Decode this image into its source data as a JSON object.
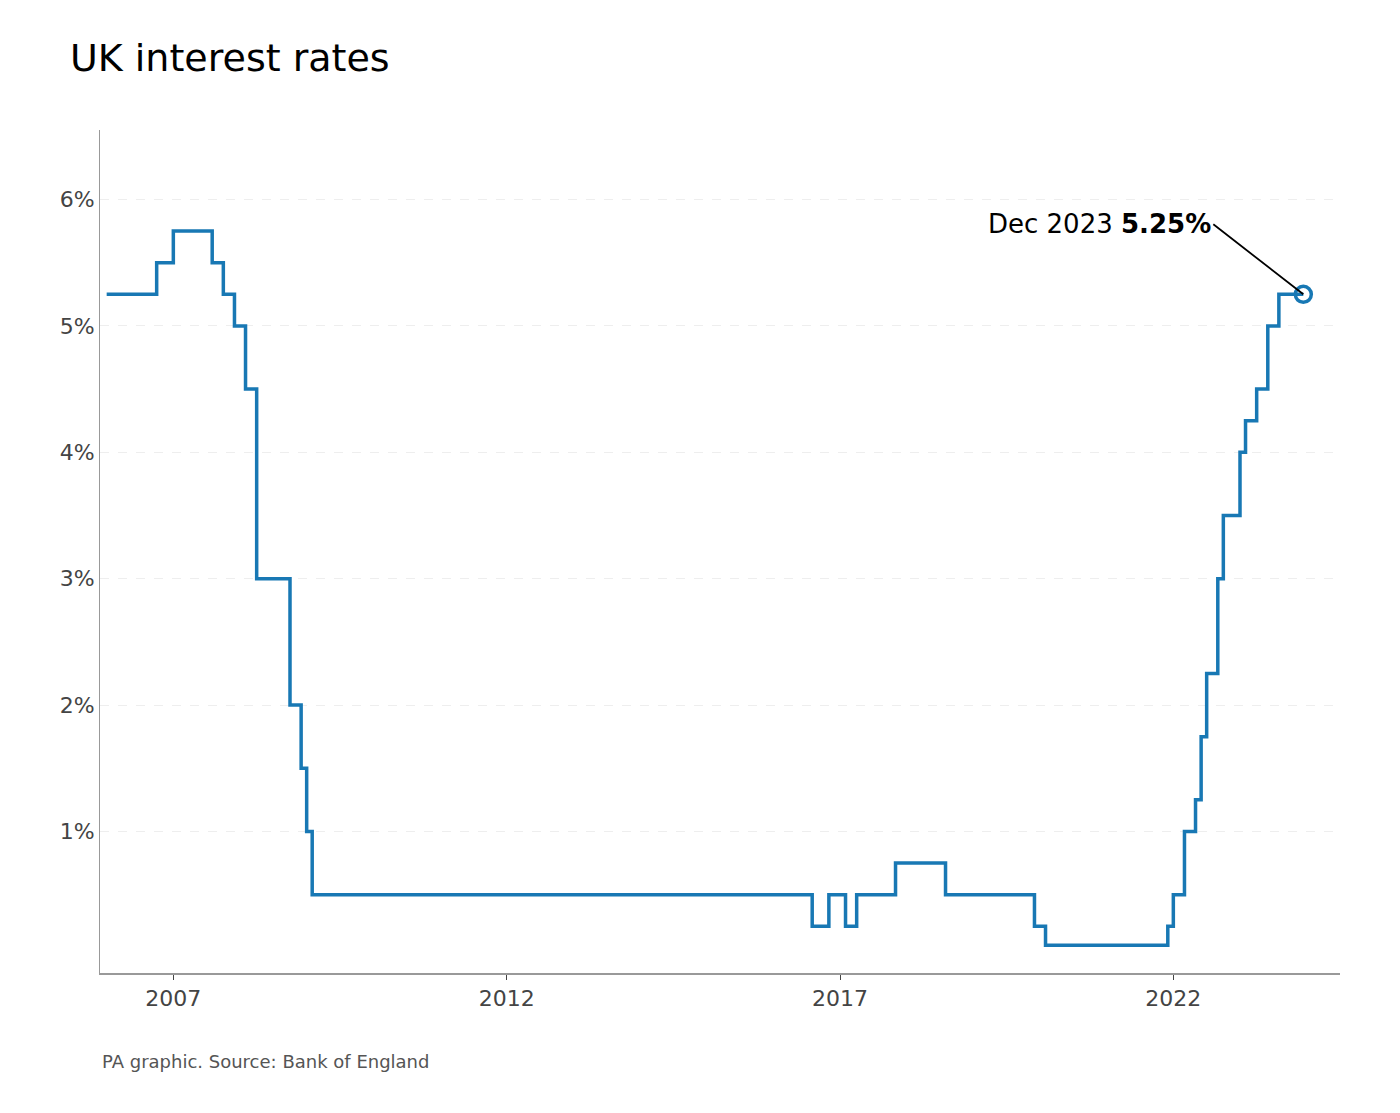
{
  "chart_data": {
    "type": "line",
    "title": "UK interest rates",
    "source": "PA graphic. Source: Bank of England",
    "annotations": [
      "Dec 2023 5.25%"
    ],
    "color": "#1878b4",
    "x": [
      2006.0,
      2006.75,
      2006.75,
      2007.0,
      2007.0,
      2007.583,
      2007.583,
      2007.75,
      2007.75,
      2007.917,
      2007.917,
      2008.083,
      2008.083,
      2008.25,
      2008.25,
      2008.75,
      2008.75,
      2008.917,
      2008.917,
      2009.0,
      2009.0,
      2009.083,
      2009.083,
      2016.583,
      2016.583,
      2016.833,
      2016.833,
      2017.083,
      2017.083,
      2017.25,
      2017.25,
      2017.833,
      2017.833,
      2018.583,
      2018.583,
      2019.917,
      2019.917,
      2020.083,
      2020.083,
      2021.917,
      2021.917,
      2022.0,
      2022.0,
      2022.167,
      2022.167,
      2022.333,
      2022.333,
      2022.417,
      2022.417,
      2022.5,
      2022.5,
      2022.667,
      2022.667,
      2022.75,
      2022.75,
      2022.917,
      2022.917,
      2023.0,
      2023.0,
      2023.083,
      2023.083,
      2023.25,
      2023.25,
      2023.417,
      2023.417,
      2023.583,
      2023.583,
      2023.95
    ],
    "values": [
      5.25,
      5.25,
      5.5,
      5.5,
      5.75,
      5.75,
      5.5,
      5.5,
      5.25,
      5.25,
      5.0,
      5.0,
      4.5,
      4.5,
      3.0,
      3.0,
      2.0,
      2.0,
      1.5,
      1.5,
      1.0,
      1.0,
      0.5,
      0.5,
      0.25,
      0.25,
      0.5,
      0.5,
      0.25,
      0.25,
      0.5,
      0.5,
      0.75,
      0.75,
      0.5,
      0.5,
      0.25,
      0.25,
      0.1,
      0.1,
      0.25,
      0.25,
      0.5,
      0.5,
      1.0,
      1.0,
      1.25,
      1.25,
      1.75,
      1.75,
      2.25,
      2.25,
      3.0,
      3.0,
      3.5,
      3.5,
      3.5,
      3.5,
      4.0,
      4.0,
      4.25,
      4.25,
      4.5,
      4.5,
      5.0,
      5.0,
      5.25,
      5.25
    ],
    "xlim": [
      2005.9,
      2024.5
    ],
    "xticks": [
      2007,
      2012,
      2017,
      2022
    ],
    "ylim": [
      -0.12,
      6.55
    ],
    "yticks": [
      {
        "value": 1,
        "label": "1%"
      },
      {
        "value": 2,
        "label": "2%"
      },
      {
        "value": 3,
        "label": "3%"
      },
      {
        "value": 4,
        "label": "4%"
      },
      {
        "value": 5,
        "label": "5%"
      },
      {
        "value": 6,
        "label": "6%"
      }
    ],
    "grid": true
  }
}
